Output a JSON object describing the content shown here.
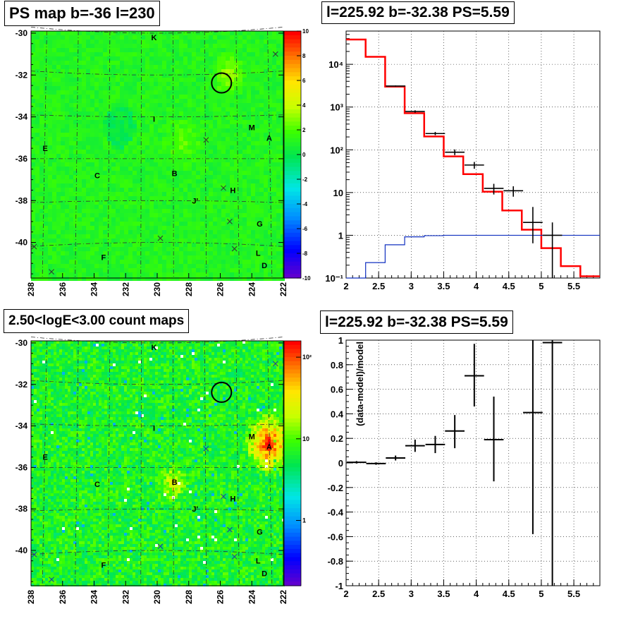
{
  "panels": {
    "map_top": {
      "title": "PS map b=-36 l=230"
    },
    "spectrum": {
      "title": "l=225.92 b=-32.38 PS=5.59"
    },
    "map_bottom": {
      "title": "2.50<logE<3.00 count maps"
    },
    "residual": {
      "title": "l=225.92 b=-32.38 PS=5.59"
    }
  },
  "maps": {
    "lon_ticks": [
      "238",
      "236",
      "234",
      "232",
      "230",
      "228",
      "226",
      "224",
      "222"
    ],
    "lat_ticks": [
      "-30",
      "-32",
      "-34",
      "-36",
      "-38",
      "-40"
    ],
    "lon_range": [
      238,
      222
    ],
    "lat_range": [
      -41.7,
      -29.9
    ],
    "sources": [
      {
        "label": "K",
        "l": 230.2,
        "b": -30.2
      },
      {
        "label": "I",
        "l": 230.2,
        "b": -34.1
      },
      {
        "label": "M",
        "l": 224.0,
        "b": -34.5
      },
      {
        "label": "A",
        "l": 222.9,
        "b": -35.0
      },
      {
        "label": "E",
        "l": 237.1,
        "b": -35.5
      },
      {
        "label": "C",
        "l": 233.8,
        "b": -36.8
      },
      {
        "label": "B",
        "l": 228.9,
        "b": -36.7
      },
      {
        "label": "H",
        "l": 225.2,
        "b": -37.5
      },
      {
        "label": "J'",
        "l": 227.6,
        "b": -38.0
      },
      {
        "label": "G",
        "l": 223.5,
        "b": -39.1
      },
      {
        "label": "L",
        "l": 223.6,
        "b": -40.5
      },
      {
        "label": "F",
        "l": 233.4,
        "b": -40.7
      },
      {
        "label": "D",
        "l": 223.2,
        "b": -41.1
      }
    ],
    "crosses": [
      {
        "l": 222.5,
        "b": -31.0
      },
      {
        "l": 226.9,
        "b": -35.1
      },
      {
        "l": 225.8,
        "b": -37.4
      },
      {
        "l": 225.4,
        "b": -39.0
      },
      {
        "l": 225.1,
        "b": -40.3
      },
      {
        "l": 229.8,
        "b": -39.8
      },
      {
        "l": 237.8,
        "b": -40.2
      },
      {
        "l": 236.7,
        "b": -41.4
      }
    ],
    "circle": {
      "l": 225.92,
      "b": -32.38
    },
    "top_colorbar": {
      "ticks": [
        "10",
        "8",
        "6",
        "4",
        "2",
        "0",
        "-2",
        "-4",
        "-6",
        "-8",
        "-10"
      ],
      "range": [
        -10,
        10
      ]
    },
    "bottom_colorbar": {
      "ticks": [
        "10²",
        "10",
        "1"
      ],
      "log_range": [
        -0.8,
        2.2
      ],
      "tick_values": [
        100,
        10,
        1
      ]
    }
  },
  "chart_data": [
    {
      "type": "line",
      "title": "l=225.92 b=-32.38 PS=5.59",
      "xlabel": "",
      "ylabel": "",
      "xlim": [
        2.0,
        5.9
      ],
      "ylim": [
        0.1,
        60000
      ],
      "yscale": "log",
      "grid": true,
      "x_ticks": [
        "2",
        "2.5",
        "3",
        "3.5",
        "4",
        "4.5",
        "5",
        "5.5"
      ],
      "y_ticks": [
        "10⁻¹",
        "1",
        "10",
        "10²",
        "10³",
        "10⁴"
      ],
      "bin_edges": [
        2.0,
        2.3,
        2.6,
        2.9,
        3.2,
        3.5,
        3.8,
        4.1,
        4.4,
        4.7,
        5.0,
        5.3,
        5.6,
        5.9
      ],
      "series": [
        {
          "values": [
            38000,
            15000,
            3000,
            720,
            205,
            70,
            27,
            10.5,
            3.8,
            1.35,
            0.5,
            0.19,
            0.11
          ],
          "color": "#ff0000"
        },
        {
          "values": [
            0.1,
            0.23,
            0.6,
            0.92,
            0.98,
            1.0,
            1.0,
            1.0,
            1.0,
            1.0,
            1.0,
            1.0,
            1.0
          ],
          "color": "#1030c0"
        }
      ],
      "points": [
        {
          "x": 2.76,
          "y": 3100,
          "xerr": 0.15,
          "ylo": 3000,
          "yhi": 3200
        },
        {
          "x": 3.06,
          "y": 790,
          "xerr": 0.15,
          "ylo": 740,
          "yhi": 840
        },
        {
          "x": 3.37,
          "y": 240,
          "xerr": 0.15,
          "ylo": 220,
          "yhi": 262
        },
        {
          "x": 3.67,
          "y": 88,
          "xerr": 0.15,
          "ylo": 75,
          "yhi": 102
        },
        {
          "x": 3.97,
          "y": 44,
          "xerr": 0.15,
          "ylo": 36,
          "yhi": 52
        },
        {
          "x": 4.27,
          "y": 12.5,
          "xerr": 0.15,
          "ylo": 9,
          "yhi": 16
        },
        {
          "x": 4.57,
          "y": 11,
          "xerr": 0.15,
          "ylo": 8,
          "yhi": 14
        },
        {
          "x": 4.87,
          "y": 2,
          "xerr": 0.15,
          "ylo": 0.65,
          "yhi": 4.6
        },
        {
          "x": 5.17,
          "y": 1.0,
          "xerr": 0.15,
          "ylo": 0.1,
          "yhi": 2.0
        }
      ]
    },
    {
      "type": "scatter",
      "title": "l=225.92 b=-32.38 PS=5.59",
      "xlabel": "",
      "ylabel": "(data-model)/model",
      "xlim": [
        2.0,
        5.9
      ],
      "ylim": [
        -1,
        1
      ],
      "grid": true,
      "x_ticks": [
        "2",
        "2.5",
        "3",
        "3.5",
        "4",
        "4.5",
        "5",
        "5.5"
      ],
      "y_ticks": [
        "-1",
        "-0.8",
        "-0.6",
        "-0.4",
        "-0.2",
        "0",
        "0.2",
        "0.4",
        "0.6",
        "0.8",
        "1"
      ],
      "points": [
        {
          "x": 2.16,
          "y": 0.005,
          "xerr": 0.15,
          "ylo": -0.005,
          "yhi": 0.015
        },
        {
          "x": 2.46,
          "y": -0.005,
          "xerr": 0.15,
          "ylo": -0.015,
          "yhi": 0.005
        },
        {
          "x": 2.76,
          "y": 0.04,
          "xerr": 0.15,
          "ylo": 0.02,
          "yhi": 0.06
        },
        {
          "x": 3.06,
          "y": 0.14,
          "xerr": 0.15,
          "ylo": 0.09,
          "yhi": 0.19
        },
        {
          "x": 3.37,
          "y": 0.15,
          "xerr": 0.15,
          "ylo": 0.08,
          "yhi": 0.22
        },
        {
          "x": 3.67,
          "y": 0.26,
          "xerr": 0.15,
          "ylo": 0.12,
          "yhi": 0.39
        },
        {
          "x": 3.97,
          "y": 0.71,
          "xerr": 0.15,
          "ylo": 0.46,
          "yhi": 0.97
        },
        {
          "x": 4.27,
          "y": 0.19,
          "xerr": 0.15,
          "ylo": -0.15,
          "yhi": 0.54
        },
        {
          "x": 4.87,
          "y": 0.41,
          "xerr": 0.15,
          "ylo": -0.58,
          "yhi": 1.0
        },
        {
          "x": 5.17,
          "y": 0.98,
          "xerr": 0.15,
          "ylo": -1.0,
          "yhi": 1.0
        }
      ]
    }
  ]
}
